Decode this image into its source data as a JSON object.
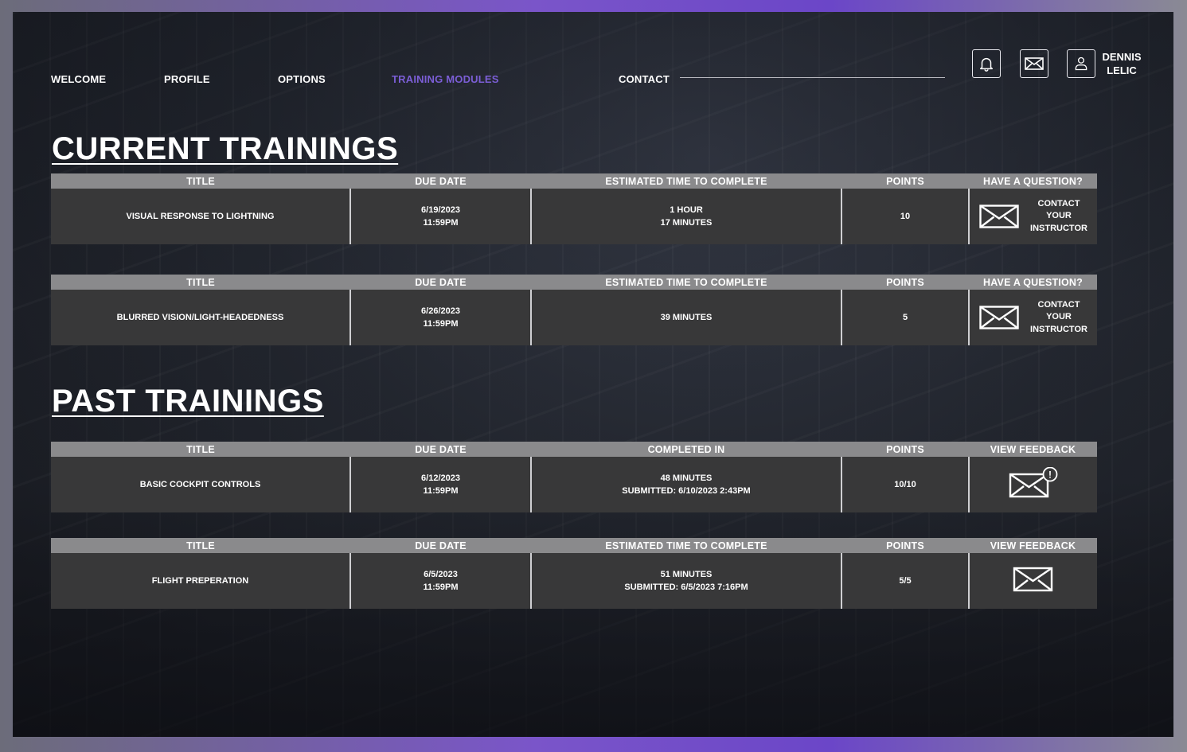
{
  "nav": {
    "items": [
      {
        "label": "WELCOME"
      },
      {
        "label": "PROFILE"
      },
      {
        "label": "OPTIONS"
      },
      {
        "label": "TRAINING MODULES",
        "active": true
      },
      {
        "label": "CONTACT"
      }
    ]
  },
  "header": {
    "icons": [
      "bell-icon",
      "mail-icon",
      "user-icon"
    ],
    "user_first": "DENNIS",
    "user_last": "LELIC"
  },
  "colors": {
    "accent": "#7b5ed6",
    "header_bar": "#8a8a8c",
    "row_bg": "#383839"
  },
  "current": {
    "title": "CURRENT TRAININGS",
    "tables": [
      {
        "headers": [
          "TITLE",
          "DUE DATE",
          "ESTIMATED TIME TO COMPLETE",
          "POINTS",
          "HAVE A QUESTION?"
        ],
        "title": "VISUAL RESPONSE TO LIGHTNING",
        "due_date": "6/19/2023",
        "due_time": "11:59PM",
        "time_line1": "1 HOUR",
        "time_line2": "17 MINUTES",
        "points": "10",
        "contact_lines": [
          "CONTACT",
          "YOUR",
          "INSTRUCTOR"
        ]
      },
      {
        "headers": [
          "TITLE",
          "DUE DATE",
          "ESTIMATED TIME TO COMPLETE",
          "POINTS",
          "HAVE A QUESTION?"
        ],
        "title": "BLURRED VISION/LIGHT-HEADEDNESS",
        "due_date": "6/26/2023",
        "due_time": "11:59PM",
        "time_line1": "39 MINUTES",
        "time_line2": "",
        "points": "5",
        "contact_lines": [
          "CONTACT",
          "YOUR",
          "INSTRUCTOR"
        ]
      }
    ]
  },
  "past": {
    "title": "PAST TRAININGS",
    "tables": [
      {
        "headers": [
          "TITLE",
          "DUE DATE",
          "COMPLETED IN",
          "POINTS",
          "VIEW FEEDBACK"
        ],
        "title": "BASIC COCKPIT CONTROLS",
        "due_date": "6/12/2023",
        "due_time": "11:59PM",
        "time_line1": "48 MINUTES",
        "time_line2": "SUBMITTED: 6/10/2023 2:43PM",
        "points": "10/10",
        "feedback_icon": "mail-alert-icon",
        "alert_mark": "!"
      },
      {
        "headers": [
          "TITLE",
          "DUE DATE",
          "ESTIMATED TIME TO COMPLETE",
          "POINTS",
          "VIEW FEEDBACK"
        ],
        "title": "FLIGHT PREPERATION",
        "due_date": "6/5/2023",
        "due_time": "11:59PM",
        "time_line1": "51 MINUTES",
        "time_line2": "SUBMITTED: 6/5/2023 7:16PM",
        "points": "5/5",
        "feedback_icon": "mail-icon"
      }
    ]
  }
}
